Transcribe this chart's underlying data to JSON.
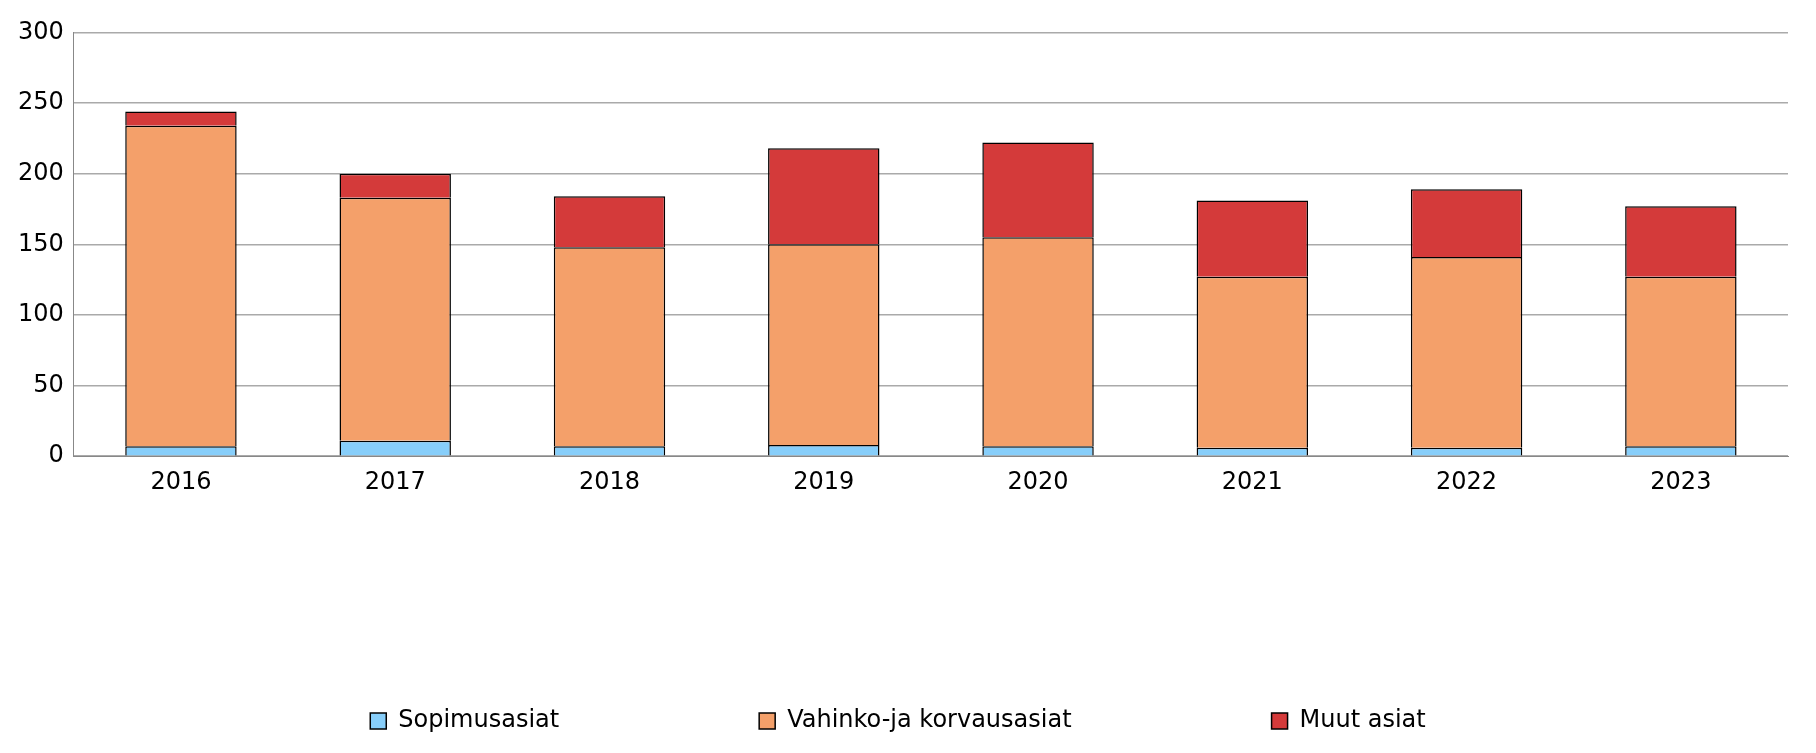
{
  "chart_data": {
    "type": "bar",
    "stacked": true,
    "categories": [
      "2016",
      "2017",
      "2018",
      "2019",
      "2020",
      "2021",
      "2022",
      "2023"
    ],
    "series": [
      {
        "name": "Sopimusasiat",
        "color": "#87cefa",
        "values": [
          7,
          11,
          7,
          8,
          7,
          6,
          6,
          7
        ]
      },
      {
        "name": "Vahinko-ja korvausasiat",
        "color": "#f4a06a",
        "values": [
          227,
          172,
          141,
          142,
          148,
          121,
          135,
          120
        ]
      },
      {
        "name": "Muut asiat",
        "color": "#d43a3a",
        "values": [
          10,
          17,
          36,
          68,
          67,
          54,
          48,
          50
        ]
      }
    ],
    "ylim": [
      0,
      300
    ],
    "yticks": [
      0,
      50,
      100,
      150,
      200,
      250,
      300
    ],
    "grid": "y",
    "legend": "bottom"
  }
}
